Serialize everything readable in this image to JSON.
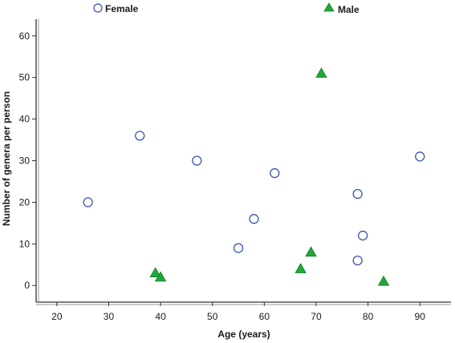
{
  "chart_data": {
    "type": "scatter",
    "xlabel": "Age (years)",
    "ylabel": "Number of genera per person",
    "xlim": [
      16,
      96
    ],
    "ylim": [
      -4,
      64
    ],
    "x_ticks": [
      20,
      30,
      40,
      50,
      60,
      70,
      80,
      90
    ],
    "y_ticks": [
      0,
      10,
      20,
      30,
      40,
      50,
      60
    ],
    "grid": false,
    "legend_placement": "top",
    "series": [
      {
        "name": "Female",
        "marker": "circle",
        "color": "#3a54b4",
        "points": [
          {
            "x": 26,
            "y": 20
          },
          {
            "x": 36,
            "y": 36
          },
          {
            "x": 47,
            "y": 30
          },
          {
            "x": 55,
            "y": 9
          },
          {
            "x": 58,
            "y": 16
          },
          {
            "x": 62,
            "y": 27
          },
          {
            "x": 78,
            "y": 22
          },
          {
            "x": 78,
            "y": 6
          },
          {
            "x": 79,
            "y": 12
          },
          {
            "x": 90,
            "y": 31
          }
        ]
      },
      {
        "name": "Male",
        "marker": "triangle",
        "color": "#22a83a",
        "points": [
          {
            "x": 39,
            "y": 3
          },
          {
            "x": 40,
            "y": 2
          },
          {
            "x": 67,
            "y": 4
          },
          {
            "x": 69,
            "y": 8
          },
          {
            "x": 71,
            "y": 51
          },
          {
            "x": 83,
            "y": 1
          }
        ]
      }
    ]
  }
}
